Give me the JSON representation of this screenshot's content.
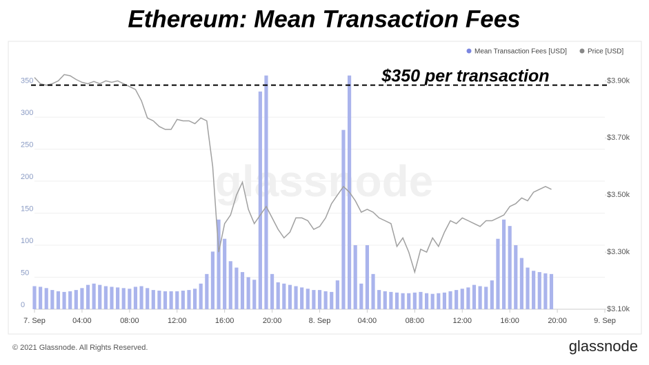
{
  "chart_data": {
    "type": "bar-line",
    "title": "Ethereum: Mean Transaction Fees",
    "annotation": "$350 per transaction",
    "reference_line": 350,
    "watermark": "glassnode",
    "footer": "© 2021 Glassnode. All Rights Reserved.",
    "logo": "glassnode",
    "x": [
      0,
      0.5,
      1,
      1.5,
      2,
      2.5,
      3,
      3.5,
      4,
      4.5,
      5,
      5.5,
      6,
      6.5,
      7,
      7.5,
      8,
      8.5,
      9,
      9.5,
      10,
      10.5,
      11,
      11.5,
      12,
      12.5,
      13,
      13.5,
      14,
      14.5,
      15,
      15.5,
      16,
      16.5,
      17,
      17.5,
      18,
      18.5,
      19,
      19.5,
      20,
      20.5,
      21,
      21.5,
      22,
      22.5,
      23,
      23.5,
      24,
      24.5,
      25,
      25.5,
      26,
      26.5,
      27,
      27.5,
      28,
      28.5,
      29,
      29.5,
      30,
      30.5,
      31,
      31.5,
      32,
      32.5,
      33,
      33.5,
      34,
      34.5,
      35,
      35.5,
      36,
      36.5,
      37,
      37.5,
      38,
      38.5,
      39,
      39.5,
      40,
      40.5,
      41,
      41.5,
      42,
      42.5,
      43,
      43.5
    ],
    "series": [
      {
        "name": "Mean Transaction Fees [USD]",
        "color": "#aab4ec",
        "axis": "y",
        "values": [
          36,
          35,
          33,
          30,
          28,
          27,
          28,
          30,
          33,
          38,
          40,
          38,
          36,
          35,
          34,
          33,
          32,
          35,
          36,
          33,
          30,
          29,
          28,
          28,
          28,
          29,
          30,
          32,
          40,
          55,
          90,
          140,
          110,
          75,
          65,
          58,
          50,
          46,
          340,
          365,
          55,
          42,
          40,
          38,
          36,
          34,
          32,
          30,
          30,
          28,
          27,
          45,
          280,
          365,
          100,
          40,
          100,
          55,
          30,
          28,
          27,
          26,
          25,
          25,
          26,
          27,
          25,
          24,
          25,
          26,
          28,
          30,
          32,
          34,
          38,
          36,
          35,
          45,
          110,
          140,
          130,
          100,
          80,
          65,
          60,
          58,
          56,
          55
        ]
      },
      {
        "name": "Price [USD]",
        "color": "#a0a0a0",
        "axis": "y2",
        "values": [
          3912,
          3890,
          3885,
          3890,
          3900,
          3922,
          3918,
          3905,
          3895,
          3890,
          3898,
          3890,
          3900,
          3895,
          3900,
          3890,
          3880,
          3870,
          3830,
          3770,
          3760,
          3740,
          3730,
          3730,
          3765,
          3760,
          3760,
          3750,
          3770,
          3760,
          3600,
          3300,
          3400,
          3430,
          3500,
          3545,
          3450,
          3400,
          3430,
          3460,
          3420,
          3380,
          3350,
          3370,
          3420,
          3420,
          3410,
          3380,
          3390,
          3420,
          3470,
          3500,
          3530,
          3510,
          3480,
          3440,
          3450,
          3440,
          3420,
          3410,
          3400,
          3320,
          3350,
          3300,
          3230,
          3310,
          3300,
          3350,
          3320,
          3370,
          3410,
          3400,
          3420,
          3410,
          3400,
          3390,
          3410,
          3410,
          3420,
          3430,
          3460,
          3470,
          3490,
          3480,
          3510,
          3520,
          3530,
          3520
        ]
      }
    ],
    "xlim": [
      0,
      48
    ],
    "xticks": [
      {
        "value": 0,
        "label": "7. Sep"
      },
      {
        "value": 4,
        "label": "04:00"
      },
      {
        "value": 8,
        "label": "08:00"
      },
      {
        "value": 12,
        "label": "12:00"
      },
      {
        "value": 16,
        "label": "16:00"
      },
      {
        "value": 20,
        "label": "20:00"
      },
      {
        "value": 24,
        "label": "8. Sep"
      },
      {
        "value": 28,
        "label": "04:00"
      },
      {
        "value": 32,
        "label": "08:00"
      },
      {
        "value": 36,
        "label": "12:00"
      },
      {
        "value": 40,
        "label": "16:00"
      },
      {
        "value": 44,
        "label": "20:00"
      },
      {
        "value": 48,
        "label": "9. Sep"
      }
    ],
    "ylim": [
      0,
      370
    ],
    "yticks": [
      0,
      50,
      100,
      150,
      200,
      250,
      300,
      350
    ],
    "y2lim": [
      3100,
      3930
    ],
    "y2ticks": [
      {
        "value": 3100,
        "label": "$3.10k"
      },
      {
        "value": 3300,
        "label": "$3.30k"
      },
      {
        "value": 3500,
        "label": "$3.50k"
      },
      {
        "value": 3700,
        "label": "$3.70k"
      },
      {
        "value": 3900,
        "label": "$3.90k"
      }
    ],
    "grid": true
  }
}
